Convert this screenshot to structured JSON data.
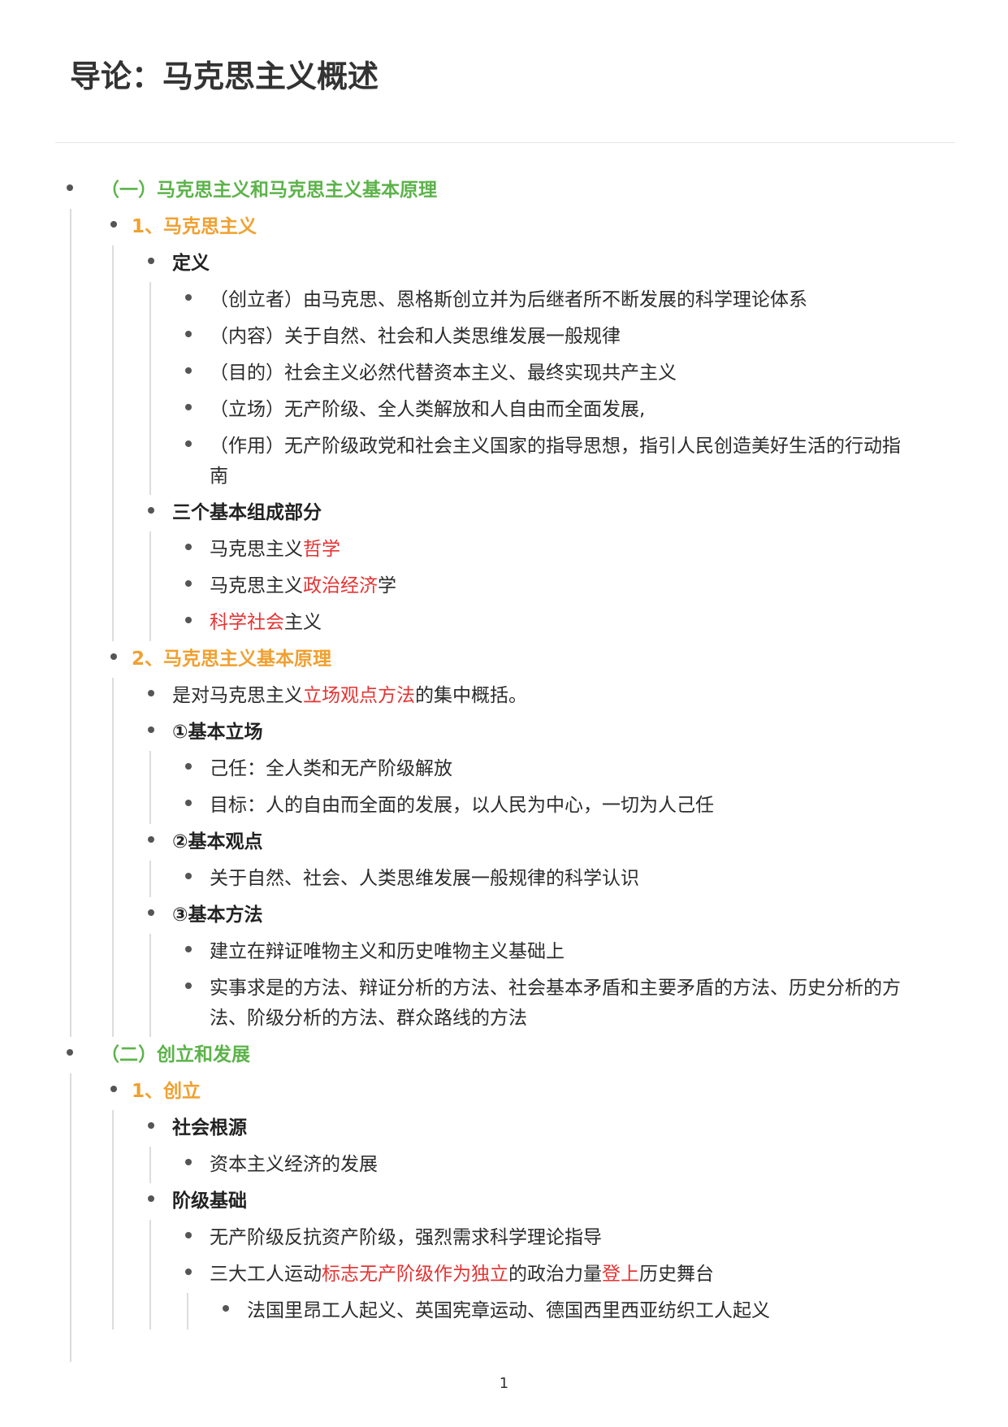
{
  "page": {
    "title": "导论：马克思主义概述",
    "page_number": "1"
  },
  "outline": {
    "s1": {
      "label": "（一）马克思主义和马克思主义基本原理",
      "p1": {
        "label": "1、马克思主义",
        "def": {
          "label": "定义",
          "i1": "（创立者）由马克思、恩格斯创立并为后继者所不断发展的科学理论体系",
          "i2": "（内容）关于自然、社会和人类思维发展一般规律",
          "i3": "（目的）社会主义必然代替资本主义、最终实现共产主义",
          "i4": "（立场）无产阶级、全人类解放和人自由而全面发展,",
          "i5_line1": "（作用）无产阶级政党和社会主义国家的指导思想，指引人民创造美好生活的行动指",
          "i5_line2": "南"
        },
        "parts": {
          "label": "三个基本组成部分",
          "a_pre": "马克思主义",
          "a_red": "哲学",
          "b_pre": "马克思主义",
          "b_red": "政治经济",
          "b_post": "学",
          "c_red": "科学社会",
          "c_post": "主义"
        }
      },
      "p2": {
        "label": "2、马克思主义基本原理",
        "summary_pre": "是对马克思主义",
        "summary_red": "立场观点方法",
        "summary_post": "的集中概括。",
        "stand": {
          "label": "①基本立场",
          "i1": "己任：全人类和无产阶级解放",
          "i2": "目标：人的自由而全面的发展，以人民为中心，一切为人己任"
        },
        "view": {
          "label": "②基本观点",
          "i1": "关于自然、社会、人类思维发展一般规律的科学认识"
        },
        "method": {
          "label": "③基本方法",
          "i1": "建立在辩证唯物主义和历史唯物主义基础上",
          "i2_line1": "实事求是的方法、辩证分析的方法、社会基本矛盾和主要矛盾的方法、历史分析的方",
          "i2_line2": "法、阶级分析的方法、群众路线的方法"
        }
      }
    },
    "s2": {
      "label": "（二）创立和发展",
      "p1": {
        "label": "1、创立",
        "social": {
          "label": "社会根源",
          "i1": "资本主义经济的发展"
        },
        "class": {
          "label": "阶级基础",
          "i1": "无产阶级反抗资产阶级，强烈需求科学理论指导",
          "i2_pre": "三大工人运动",
          "i2_red1": "标志无产阶级作为独立",
          "i2_mid": "的政治力量",
          "i2_red2": "登上",
          "i2_post": "历史舞台",
          "i2_sub": "法国里昂工人起义、英国宪章运动、德国西里西亚纺织工人起义"
        }
      }
    }
  },
  "colors": {
    "section": "#5cb34a",
    "subsection": "#f0a030",
    "highlight": "#e53333"
  }
}
